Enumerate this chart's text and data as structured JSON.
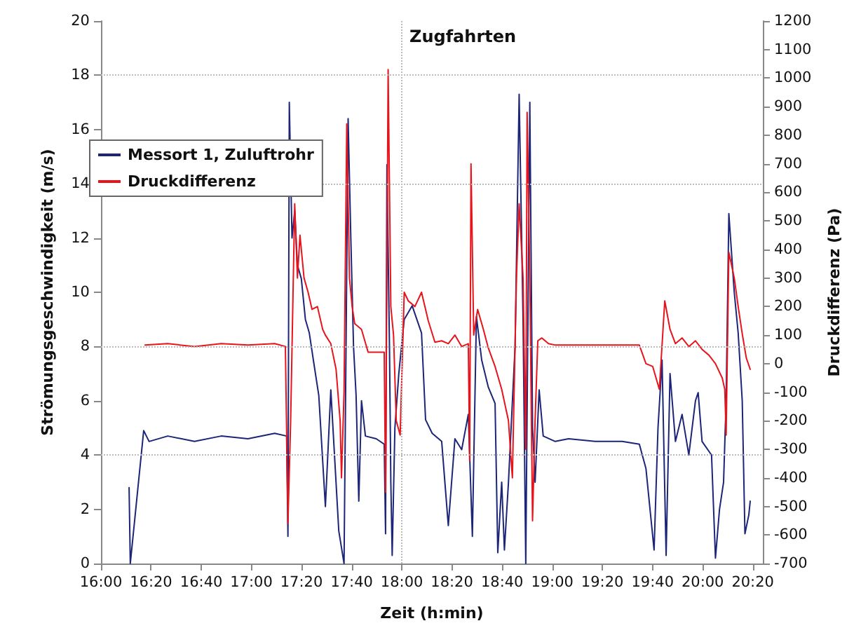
{
  "chart_data": {
    "type": "line",
    "xlabel": "Zeit (h:min)",
    "ylabel": "Strömungsgeschwindigkeit (m/s)",
    "y2label": "Druckdifferenz (Pa)",
    "annotations": [
      "Zugfahrten"
    ],
    "xlim": [
      16,
      20.4
    ],
    "xticks": [
      {
        "value": 16,
        "label": "16:00"
      },
      {
        "value": 16.333,
        "label": "16:20"
      },
      {
        "value": 16.667,
        "label": "16:40"
      },
      {
        "value": 17,
        "label": "17:00"
      },
      {
        "value": 17.333,
        "label": "17:20"
      },
      {
        "value": 17.667,
        "label": "17:40"
      },
      {
        "value": 18,
        "label": "18:00"
      },
      {
        "value": 18.333,
        "label": "18:20"
      },
      {
        "value": 18.667,
        "label": "18:40"
      },
      {
        "value": 19,
        "label": "19:00"
      },
      {
        "value": 19.333,
        "label": "19:20"
      },
      {
        "value": 19.667,
        "label": "19:40"
      },
      {
        "value": 20,
        "label": "20:00"
      },
      {
        "value": 20.333,
        "label": "20:20"
      }
    ],
    "ylim": [
      0,
      20
    ],
    "yticks": [
      0,
      2,
      4,
      6,
      8,
      10,
      12,
      14,
      16,
      18,
      20
    ],
    "y2lim": [
      -700,
      1200
    ],
    "y2ticks": [
      -700,
      -600,
      -500,
      -400,
      -300,
      -200,
      -100,
      0,
      100,
      200,
      300,
      400,
      500,
      600,
      700,
      800,
      900,
      1000,
      1100,
      1200
    ],
    "grid": false,
    "legend": "top left",
    "marker": "none",
    "line_style": "solid",
    "ref_lines": [
      {
        "axis": "y",
        "value": 4,
        "color": "#bbbbbb",
        "line_style": "dotted"
      },
      {
        "axis": "y",
        "value": 8,
        "color": "#bbbbbb",
        "line_style": "dotted"
      },
      {
        "axis": "y",
        "value": 14,
        "color": "#bbbbbb",
        "line_style": "dotted"
      },
      {
        "axis": "y",
        "value": 18,
        "color": "#bbbbbb",
        "line_style": "dotted"
      },
      {
        "axis": "x",
        "value": 18,
        "color": "#bbbbbb",
        "line_style": "dotted"
      }
    ],
    "series": [
      {
        "name": "Messort 1, Zuluftrohr",
        "color": "#1c2577",
        "x": [
          16.187,
          16.195,
          16.284,
          16.32,
          16.444,
          16.622,
          16.799,
          16.977,
          17.155,
          17.234,
          17.243,
          17.252,
          17.27,
          17.288,
          17.306,
          17.332,
          17.359,
          17.385,
          17.412,
          17.448,
          17.492,
          17.528,
          17.581,
          17.616,
          17.643,
          17.661,
          17.679,
          17.696,
          17.714,
          17.732,
          17.758,
          17.83,
          17.883,
          17.892,
          17.901,
          17.918,
          17.927,
          17.936,
          17.954,
          17.98,
          18.016,
          18.069,
          18.131,
          18.158,
          18.202,
          18.265,
          18.309,
          18.353,
          18.398,
          18.442,
          18.469,
          18.496,
          18.531,
          18.575,
          18.62,
          18.638,
          18.664,
          18.682,
          18.709,
          18.753,
          18.78,
          18.806,
          18.824,
          18.851,
          18.869,
          18.886,
          18.913,
          18.94,
          19.02,
          19.108,
          19.286,
          19.464,
          19.579,
          19.623,
          19.677,
          19.703,
          19.73,
          19.757,
          19.783,
          19.819,
          19.863,
          19.908,
          19.952,
          19.97,
          19.996,
          20.059,
          20.085,
          20.112,
          20.139,
          20.156,
          20.174,
          20.21,
          20.236,
          20.263,
          20.281,
          20.307,
          20.316
        ],
        "values": [
          2.8,
          0,
          4.9,
          4.5,
          4.7,
          4.5,
          4.7,
          4.6,
          4.8,
          4.7,
          1,
          17,
          12,
          13,
          11,
          10.5,
          9,
          8.5,
          7.5,
          6.2,
          2.1,
          6.4,
          1.2,
          0,
          16.4,
          12,
          8,
          6.2,
          2.3,
          6,
          4.7,
          4.6,
          4.4,
          1.1,
          14.7,
          8,
          3,
          0.3,
          5,
          7,
          9,
          9.5,
          8.5,
          5.3,
          4.8,
          4.5,
          1.4,
          4.6,
          4.2,
          5.5,
          1,
          9.1,
          7.5,
          6.5,
          5.9,
          0.4,
          3,
          0.5,
          3,
          8,
          17.3,
          9,
          0,
          17,
          5,
          3,
          6.4,
          4.7,
          4.5,
          4.6,
          4.5,
          4.5,
          4.4,
          3.5,
          0.5,
          5,
          7.5,
          0.3,
          7,
          4.5,
          5.5,
          4,
          6,
          6.3,
          4.5,
          4,
          0.2,
          2,
          3,
          6,
          12.9,
          10,
          8.5,
          6,
          1.1,
          1.8,
          2.3
        ]
      },
      {
        "name": "Druckdifferenz",
        "color": "#e8141c",
        "axis": "y2",
        "x": [
          16.293,
          16.444,
          16.622,
          16.799,
          16.977,
          17.155,
          17.226,
          17.243,
          17.261,
          17.288,
          17.306,
          17.323,
          17.35,
          17.377,
          17.403,
          17.439,
          17.474,
          17.492,
          17.528,
          17.563,
          17.59,
          17.599,
          17.616,
          17.634,
          17.652,
          17.67,
          17.687,
          17.732,
          17.776,
          17.883,
          17.892,
          17.909,
          17.927,
          17.945,
          17.963,
          17.989,
          18.016,
          18.043,
          18.087,
          18.131,
          18.176,
          18.22,
          18.265,
          18.309,
          18.353,
          18.398,
          18.442,
          18.451,
          18.46,
          18.478,
          18.504,
          18.54,
          18.575,
          18.62,
          18.664,
          18.709,
          18.735,
          18.762,
          18.78,
          18.806,
          18.824,
          18.833,
          18.851,
          18.869,
          18.886,
          18.904,
          18.931,
          18.975,
          19.02,
          19.286,
          19.579,
          19.623,
          19.668,
          19.712,
          19.748,
          19.783,
          19.819,
          19.863,
          19.908,
          19.952,
          19.996,
          20.041,
          20.085,
          20.13,
          20.147,
          20.156,
          20.174,
          20.21,
          20.236,
          20.263,
          20.29,
          20.316
        ],
        "values": [
          65,
          70,
          60,
          70,
          65,
          70,
          60,
          -560,
          -200,
          560,
          300,
          450,
          300,
          250,
          190,
          200,
          120,
          100,
          70,
          -20,
          -200,
          -400,
          -100,
          840,
          300,
          200,
          140,
          120,
          40,
          40,
          -450,
          1030,
          200,
          100,
          -200,
          -250,
          250,
          220,
          200,
          250,
          150,
          75,
          80,
          70,
          100,
          60,
          70,
          -340,
          700,
          100,
          190,
          124,
          55,
          -10,
          -90,
          -200,
          -400,
          300,
          560,
          300,
          -300,
          880,
          300,
          -550,
          -200,
          80,
          90,
          70,
          65,
          65,
          65,
          0,
          -10,
          -90,
          220,
          120,
          70,
          90,
          60,
          80,
          50,
          30,
          0,
          -50,
          -90,
          -250,
          390,
          300,
          200,
          105,
          20,
          -20
        ]
      }
    ]
  }
}
